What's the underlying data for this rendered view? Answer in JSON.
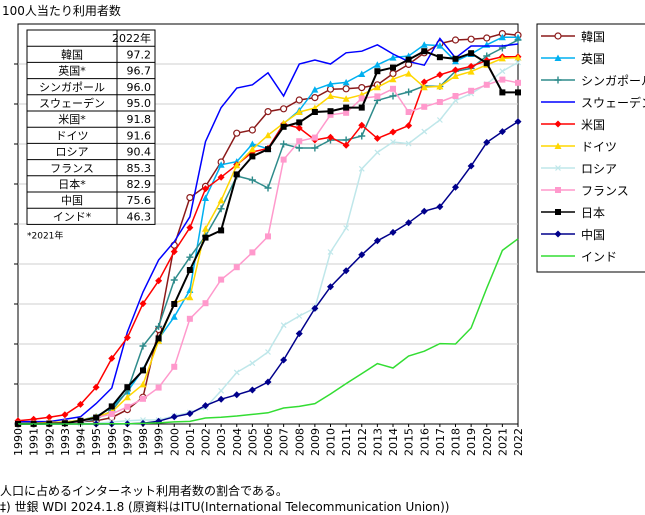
{
  "chart_data": {
    "type": "line",
    "title": "100人当たり利用者数",
    "x": [
      1990,
      1991,
      1992,
      1993,
      1994,
      1995,
      1996,
      1997,
      1998,
      1999,
      2000,
      2001,
      2002,
      2003,
      2004,
      2005,
      2006,
      2007,
      2008,
      2009,
      2010,
      2011,
      2012,
      2013,
      2014,
      2015,
      2016,
      2017,
      2018,
      2019,
      2020,
      2021,
      2022
    ],
    "ylim": [
      0,
      100
    ],
    "series": [
      {
        "name": "韓国",
        "color": "#8b1a1a",
        "marker": "circle-open",
        "values": [
          0.02,
          0.05,
          0.1,
          0.3,
          0.6,
          0.8,
          1.6,
          3.6,
          6.7,
          23.6,
          44.7,
          56.6,
          59.4,
          65.5,
          72.7,
          73.5,
          78.1,
          78.8,
          81.0,
          81.6,
          83.7,
          83.8,
          84.1,
          84.8,
          87.6,
          89.9,
          92.8,
          95.1,
          96.0,
          96.2,
          96.5,
          97.6,
          97.2
        ]
      },
      {
        "name": "英国",
        "color": "#00b0f0",
        "marker": "triangle-up",
        "values": [
          0.09,
          0.17,
          0.3,
          0.5,
          0.9,
          1.9,
          4.1,
          8.1,
          13.6,
          21.3,
          26.8,
          33.5,
          56.5,
          64.8,
          65.6,
          70.0,
          68.8,
          75.1,
          78.4,
          83.6,
          85.0,
          85.4,
          87.5,
          89.8,
          91.6,
          92.0,
          94.8,
          94.6,
          90.7,
          92.5,
          94.8,
          96.7,
          96.7
        ]
      },
      {
        "name": "シンガポール",
        "color": "#2e8b8b",
        "marker": "plus",
        "values": [
          0.0,
          0.0,
          0.1,
          0.2,
          0.5,
          1.2,
          3.3,
          8.3,
          19.5,
          24.4,
          36.0,
          41.7,
          47.0,
          53.8,
          62.0,
          61.0,
          59.0,
          70.0,
          69.0,
          69.0,
          71.0,
          71.0,
          72.0,
          80.9,
          82.0,
          83.0,
          84.5,
          84.4,
          88.2,
          88.9,
          92.0,
          94.0,
          96.0
        ]
      },
      {
        "name": "スウェーデン",
        "color": "#0000ff",
        "marker": "none",
        "values": [
          0.6,
          0.6,
          0.6,
          1.2,
          1.8,
          5.1,
          9.0,
          23.0,
          33.0,
          41.0,
          45.6,
          51.8,
          70.6,
          79.1,
          84.0,
          84.8,
          87.8,
          82.0,
          90.0,
          91.0,
          90.0,
          92.8,
          93.2,
          94.8,
          92.5,
          90.6,
          89.7,
          96.4,
          91.5,
          94.5,
          94.5,
          94.5,
          95.0
        ]
      },
      {
        "name": "米国",
        "color": "#ff0000",
        "marker": "diamond",
        "values": [
          0.8,
          1.2,
          1.7,
          2.3,
          4.9,
          9.2,
          16.4,
          21.6,
          30.1,
          35.8,
          43.1,
          49.1,
          58.8,
          61.7,
          64.8,
          68.0,
          68.9,
          75.0,
          74.0,
          71.0,
          71.7,
          69.7,
          74.7,
          71.4,
          73.0,
          74.6,
          85.5,
          87.3,
          88.5,
          89.4,
          90.9,
          91.8,
          91.8
        ]
      },
      {
        "name": "ドイツ",
        "color": "#ffd700",
        "marker": "triangle-up",
        "values": [
          0.1,
          0.2,
          0.4,
          0.5,
          0.9,
          1.8,
          3.0,
          6.7,
          9.9,
          20.8,
          30.2,
          31.7,
          48.8,
          55.9,
          64.7,
          68.7,
          72.2,
          75.2,
          78.0,
          79.0,
          82.0,
          81.3,
          82.3,
          84.2,
          86.2,
          87.6,
          84.2,
          84.4,
          87.0,
          88.1,
          89.8,
          91.4,
          91.6
        ]
      },
      {
        "name": "ロシア",
        "color": "#bfe7ea",
        "marker": "x",
        "values": [
          0.0,
          0.0,
          0.0,
          0.0,
          0.1,
          0.2,
          0.5,
          0.8,
          1.0,
          1.0,
          2.0,
          2.9,
          4.1,
          8.3,
          12.9,
          15.2,
          18.0,
          24.7,
          27.0,
          29.0,
          43.0,
          49.0,
          63.8,
          67.9,
          70.5,
          70.1,
          73.1,
          76.0,
          80.9,
          82.6,
          85.0,
          88.2,
          90.4
        ]
      },
      {
        "name": "フランス",
        "color": "#ff99cc",
        "marker": "square",
        "values": [
          0.05,
          0.1,
          0.2,
          0.3,
          0.5,
          1.6,
          2.5,
          4.3,
          6.3,
          9.1,
          14.3,
          26.3,
          30.2,
          36.1,
          39.2,
          42.9,
          46.9,
          66.1,
          70.7,
          71.6,
          77.3,
          77.8,
          81.4,
          81.9,
          83.8,
          78.0,
          79.3,
          80.5,
          82.0,
          83.3,
          84.8,
          86.1,
          85.3
        ]
      },
      {
        "name": "日本",
        "color": "#000000",
        "marker": "square",
        "values": [
          0.02,
          0.04,
          0.1,
          0.2,
          0.8,
          1.6,
          4.4,
          9.2,
          13.4,
          21.4,
          30.0,
          38.5,
          46.6,
          48.4,
          62.4,
          66.9,
          68.7,
          74.3,
          75.4,
          78.0,
          78.2,
          79.1,
          79.1,
          88.2,
          89.1,
          91.1,
          93.2,
          91.7,
          91.3,
          92.7,
          90.2,
          82.9,
          82.9
        ]
      },
      {
        "name": "中国",
        "color": "#00008b",
        "marker": "diamond",
        "values": [
          0.0,
          0.0,
          0.0,
          0.0,
          0.0,
          0.0,
          0.0,
          0.03,
          0.17,
          0.7,
          1.8,
          2.6,
          4.6,
          6.2,
          7.3,
          8.5,
          10.5,
          16.0,
          22.6,
          28.9,
          34.3,
          38.3,
          42.3,
          45.8,
          47.9,
          50.3,
          53.2,
          54.3,
          59.2,
          64.5,
          70.4,
          73.1,
          75.6
        ]
      },
      {
        "name": "インド",
        "color": "#33dd33",
        "marker": "none",
        "values": [
          0.0,
          0.0,
          0.0,
          0.0,
          0.0,
          0.03,
          0.05,
          0.07,
          0.14,
          0.27,
          0.53,
          0.66,
          1.5,
          1.7,
          2.0,
          2.4,
          2.8,
          4.0,
          4.4,
          5.1,
          7.5,
          10.1,
          12.6,
          15.1,
          14.0,
          17.0,
          18.2,
          20.1,
          20.0,
          24.0,
          34.0,
          43.4,
          46.3
        ]
      }
    ],
    "table": {
      "header": [
        "",
        "2022年"
      ],
      "rows": [
        [
          "韓国",
          "97.2"
        ],
        [
          "英国*",
          "96.7"
        ],
        [
          "シンガポール",
          "96.0"
        ],
        [
          "スウェーデン",
          "95.0"
        ],
        [
          "米国*",
          "91.8"
        ],
        [
          "ドイツ",
          "91.6"
        ],
        [
          "ロシア",
          "90.4"
        ],
        [
          "フランス",
          "85.3"
        ],
        [
          "日本*",
          "82.9"
        ],
        [
          "中国",
          "75.6"
        ],
        [
          "インド*",
          "46.3"
        ]
      ],
      "note": "*2021年"
    }
  },
  "notes": {
    "line1": "人口に占めるインターネット利用者数の割合である。",
    "line2": "‡) 世銀 WDI 2024.1.8 (原資料はITU(International Telecommunication Union))"
  }
}
